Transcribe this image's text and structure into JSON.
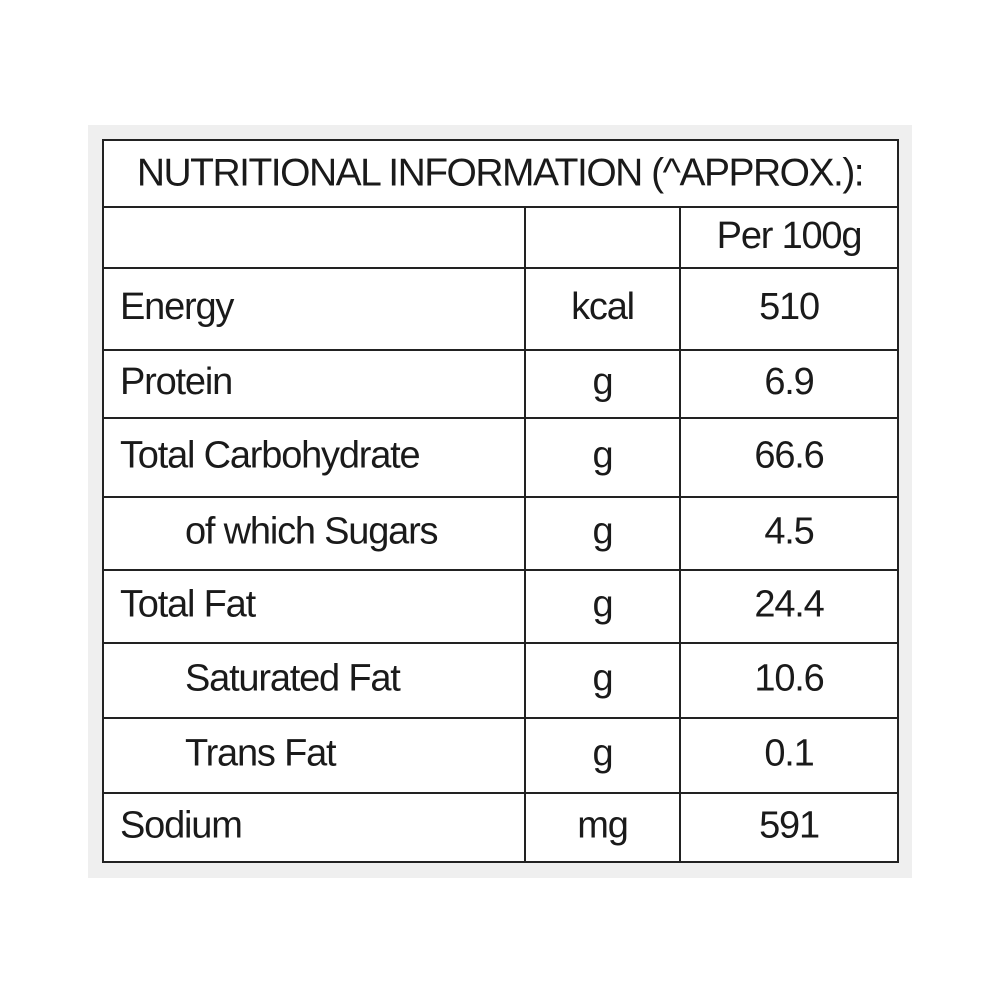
{
  "table": {
    "title": "NUTRITIONAL INFORMATION (^APPROX.):",
    "header": [
      "",
      "",
      "Per 100g"
    ],
    "rows": [
      [
        "Energy",
        "kcal",
        "510"
      ],
      [
        "Protein",
        "g",
        "6.9"
      ],
      [
        "Total Carbohydrate",
        "g",
        "66.6"
      ],
      [
        "of which Sugars",
        "g",
        "4.5"
      ],
      [
        "Total Fat",
        "g",
        "24.4"
      ],
      [
        "Saturated Fat",
        "g",
        "10.6"
      ],
      [
        "Trans Fat",
        "g",
        "0.1"
      ],
      [
        "Sodium",
        "mg",
        "591"
      ]
    ]
  }
}
